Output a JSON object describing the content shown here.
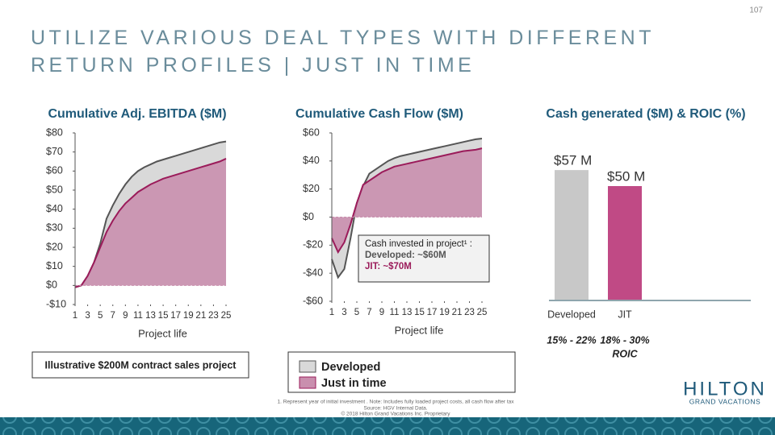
{
  "page_number": "107",
  "title": "UTILIZE VARIOUS DEAL TYPES WITH DIFFERENT RETURN PROFILES | JUST IN TIME",
  "chart_data": [
    {
      "type": "area",
      "title": "Cumulative Adj. EBITDA ($M)",
      "x_label": "Project life",
      "x": [
        1,
        2,
        3,
        4,
        5,
        6,
        7,
        8,
        9,
        10,
        11,
        12,
        13,
        14,
        15,
        16,
        17,
        18,
        19,
        20,
        21,
        22,
        23,
        24,
        25
      ],
      "xlim": [
        1,
        25
      ],
      "xticks": [
        1,
        3,
        5,
        7,
        9,
        11,
        13,
        15,
        17,
        19,
        21,
        23,
        25
      ],
      "ylim": [
        -10,
        80
      ],
      "yticks": [
        {
          "value": -10,
          "label": "-$10"
        },
        {
          "value": 0,
          "label": "$0"
        },
        {
          "value": 10,
          "label": "$10"
        },
        {
          "value": 20,
          "label": "$20"
        },
        {
          "value": 30,
          "label": "$30"
        },
        {
          "value": 40,
          "label": "$40"
        },
        {
          "value": 50,
          "label": "$50"
        },
        {
          "value": 60,
          "label": "$60"
        },
        {
          "value": 70,
          "label": "$70"
        },
        {
          "value": 80,
          "label": "$80"
        }
      ],
      "series": [
        {
          "name": "Developed",
          "color": "#d9d9d9",
          "values": [
            -1,
            0,
            5,
            12,
            22,
            35,
            42,
            48,
            53,
            57,
            60,
            62,
            63.5,
            65,
            66,
            67,
            68,
            69,
            70,
            71,
            72,
            73,
            74,
            75,
            75.5
          ]
        },
        {
          "name": "Just in time",
          "color": "#c98fae",
          "values": [
            -1,
            0,
            5,
            12,
            20,
            28,
            34,
            39,
            43,
            46,
            49,
            51,
            53,
            54.5,
            56,
            57,
            58,
            59,
            60,
            61,
            62,
            63,
            64,
            65,
            66.5
          ]
        }
      ]
    },
    {
      "type": "area",
      "title": "Cumulative Cash Flow ($M)",
      "x_label": "Project life",
      "x": [
        1,
        2,
        3,
        4,
        5,
        6,
        7,
        8,
        9,
        10,
        11,
        12,
        13,
        14,
        15,
        16,
        17,
        18,
        19,
        20,
        21,
        22,
        23,
        24,
        25
      ],
      "xlim": [
        1,
        25
      ],
      "xticks": [
        1,
        3,
        5,
        7,
        9,
        11,
        13,
        15,
        17,
        19,
        21,
        23,
        25
      ],
      "ylim": [
        -60,
        60
      ],
      "yticks": [
        {
          "value": -60,
          "label": "-$60"
        },
        {
          "value": -40,
          "label": "-$40"
        },
        {
          "value": -20,
          "label": "-$20"
        },
        {
          "value": 0,
          "label": "$0"
        },
        {
          "value": 20,
          "label": "$20"
        },
        {
          "value": 40,
          "label": "$40"
        },
        {
          "value": 60,
          "label": "$60"
        }
      ],
      "series": [
        {
          "name": "Developed",
          "color": "#d9d9d9",
          "values": [
            -30,
            -43,
            -37,
            -15,
            10,
            22,
            31,
            34,
            37,
            40,
            42,
            43.5,
            44.5,
            45.5,
            46.5,
            47.5,
            48.5,
            49.5,
            50.5,
            51.5,
            52.5,
            53.5,
            54.5,
            55.5,
            56
          ]
        },
        {
          "name": "Just in time",
          "color": "#c98fae",
          "values": [
            -15,
            -25,
            -18,
            -5,
            10,
            23,
            26,
            29,
            32,
            34,
            36,
            37,
            38,
            39,
            40,
            41,
            42,
            43,
            44,
            45,
            46,
            47,
            47.5,
            48,
            49
          ]
        }
      ],
      "annotation": [
        "Cash invested in project¹ :",
        "Developed: ~$60M",
        "JIT: ~$70M"
      ]
    },
    {
      "type": "bar",
      "title": "Cash generated ($M) & ROIC (%)",
      "categories": [
        "Developed",
        "JIT"
      ],
      "values": [
        57,
        50
      ],
      "value_labels": [
        "$57 M",
        "$50 M"
      ],
      "colors": [
        "#c8c8c8",
        "#c04a85"
      ],
      "roic": [
        "15% - 22%",
        "18% - 30%"
      ],
      "roic_label": "ROIC"
    }
  ],
  "callout": "Illustrative $200M contract sales project",
  "footnote": [
    "1.     Represent year of initial investment . Note: Includes fully loaded project costs, all cash flow after tax",
    "Source: HGV Internal Data.",
    "© 2018 Hilton Grand Vacations Inc. Proprietary"
  ],
  "logo": {
    "name": "HILTON",
    "sub": "GRAND VACATIONS"
  }
}
